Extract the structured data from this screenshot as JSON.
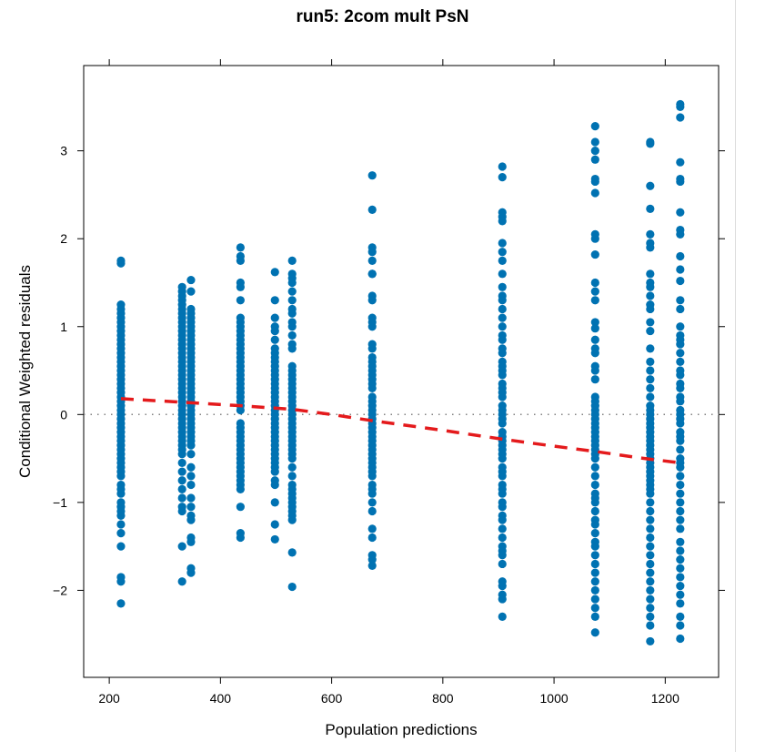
{
  "chart_data": {
    "type": "scatter",
    "title": "run5: 2com mult PsN",
    "xlabel": "Population predictions",
    "ylabel": "Conditional Weighted residuals",
    "xlim": [
      154,
      1296
    ],
    "ylim": [
      -2.99,
      3.97
    ],
    "xticks": [
      200,
      400,
      600,
      800,
      1000,
      1200
    ],
    "yticks": [
      -2,
      -1,
      0,
      1,
      2,
      3
    ],
    "reference_line": {
      "y": 0,
      "style": "dotted",
      "color": "#808080"
    },
    "point_color": "#0072B2",
    "smooth_color": "#E41A1C",
    "columns": [
      {
        "x": 221,
        "y": [
          1.75,
          1.72,
          1.25,
          1.2,
          1.15,
          1.1,
          1.05,
          1.0,
          0.95,
          0.9,
          0.85,
          0.8,
          0.75,
          0.7,
          0.65,
          0.6,
          0.55,
          0.5,
          0.45,
          0.4,
          0.35,
          0.3,
          0.25,
          0.2,
          0.15,
          0.1,
          0.05,
          0.0,
          -0.05,
          -0.1,
          -0.15,
          -0.2,
          -0.25,
          -0.3,
          -0.35,
          -0.4,
          -0.45,
          -0.5,
          -0.55,
          -0.6,
          -0.65,
          -0.7,
          -0.8,
          -0.85,
          -0.9,
          -1.0,
          -1.05,
          -1.1,
          -1.15,
          -1.25,
          -1.35,
          -1.5,
          -1.85,
          -1.9,
          -2.15
        ]
      },
      {
        "x": 331,
        "y": [
          1.45,
          1.4,
          1.35,
          1.3,
          1.25,
          1.2,
          1.15,
          1.1,
          1.05,
          1.0,
          0.95,
          0.9,
          0.85,
          0.8,
          0.75,
          0.7,
          0.65,
          0.6,
          0.55,
          0.5,
          0.45,
          0.4,
          0.35,
          0.3,
          0.25,
          0.2,
          0.15,
          0.1,
          0.05,
          0.0,
          -0.05,
          -0.1,
          -0.15,
          -0.2,
          -0.25,
          -0.3,
          -0.35,
          -0.4,
          -0.45,
          -0.55,
          -0.65,
          -0.75,
          -0.85,
          -0.95,
          -1.05,
          -1.1,
          -1.5,
          -1.9
        ]
      },
      {
        "x": 347,
        "y": [
          1.53,
          1.4,
          1.2,
          1.15,
          1.1,
          1.05,
          1.0,
          0.95,
          0.9,
          0.85,
          0.8,
          0.75,
          0.7,
          0.65,
          0.6,
          0.55,
          0.5,
          0.45,
          0.4,
          0.35,
          0.3,
          0.25,
          0.2,
          0.15,
          0.1,
          0.05,
          0.0,
          -0.05,
          -0.1,
          -0.15,
          -0.2,
          -0.25,
          -0.3,
          -0.35,
          -0.45,
          -0.6,
          -0.7,
          -0.8,
          -0.95,
          -1.05,
          -1.15,
          -1.2,
          -1.4,
          -1.45,
          -1.8,
          -1.75
        ]
      },
      {
        "x": 436,
        "y": [
          1.9,
          1.8,
          1.75,
          1.5,
          1.45,
          1.3,
          1.1,
          1.05,
          1.0,
          0.95,
          0.9,
          0.85,
          0.8,
          0.75,
          0.7,
          0.65,
          0.6,
          0.55,
          0.5,
          0.45,
          0.4,
          0.35,
          0.3,
          0.25,
          0.2,
          0.15,
          0.1,
          0.05,
          -0.1,
          -0.15,
          -0.2,
          -0.25,
          -0.3,
          -0.35,
          -0.4,
          -0.45,
          -0.5,
          -0.55,
          -0.6,
          -0.65,
          -0.7,
          -0.75,
          -0.8,
          -0.85,
          -1.05,
          -1.35,
          -1.4
        ]
      },
      {
        "x": 498,
        "y": [
          1.62,
          1.3,
          1.1,
          1.0,
          0.95,
          0.85,
          0.75,
          0.7,
          0.65,
          0.6,
          0.55,
          0.5,
          0.45,
          0.4,
          0.35,
          0.3,
          0.25,
          0.2,
          0.15,
          0.1,
          0.05,
          0.0,
          -0.05,
          -0.1,
          -0.15,
          -0.2,
          -0.25,
          -0.3,
          -0.35,
          -0.4,
          -0.45,
          -0.5,
          -0.55,
          -0.6,
          -0.65,
          -0.75,
          -0.8,
          -1.0,
          -1.25,
          -1.42
        ]
      },
      {
        "x": 529,
        "y": [
          1.75,
          1.6,
          1.55,
          1.5,
          1.4,
          1.3,
          1.2,
          1.15,
          1.05,
          1.0,
          0.9,
          0.8,
          0.75,
          0.55,
          0.5,
          0.45,
          0.4,
          0.35,
          0.3,
          0.25,
          0.2,
          0.15,
          0.1,
          0.05,
          0.0,
          -0.05,
          -0.1,
          -0.15,
          -0.2,
          -0.25,
          -0.3,
          -0.35,
          -0.4,
          -0.45,
          -0.5,
          -0.6,
          -0.7,
          -0.8,
          -0.85,
          -0.9,
          -0.95,
          -1.0,
          -1.05,
          -1.1,
          -1.15,
          -1.2,
          -1.57,
          -1.96
        ]
      },
      {
        "x": 673,
        "y": [
          2.72,
          2.33,
          1.9,
          1.85,
          1.75,
          1.6,
          1.6,
          1.35,
          1.3,
          1.1,
          1.05,
          1.0,
          0.8,
          0.75,
          0.65,
          0.6,
          0.55,
          0.5,
          0.45,
          0.4,
          0.35,
          0.3,
          0.2,
          0.15,
          0.1,
          0.05,
          0.0,
          -0.05,
          -0.1,
          -0.15,
          -0.2,
          -0.25,
          -0.3,
          -0.35,
          -0.4,
          -0.45,
          -0.5,
          -0.55,
          -0.6,
          -0.65,
          -0.7,
          -0.8,
          -0.85,
          -0.9,
          -1.0,
          -1.1,
          -1.3,
          -1.4,
          -1.6,
          -1.65,
          -1.72
        ]
      },
      {
        "x": 907,
        "y": [
          2.82,
          2.7,
          2.3,
          2.25,
          2.2,
          1.95,
          1.85,
          1.75,
          1.6,
          1.45,
          1.35,
          1.3,
          1.2,
          1.1,
          1.0,
          0.9,
          0.85,
          0.75,
          0.7,
          0.6,
          0.55,
          0.5,
          0.45,
          0.35,
          0.3,
          0.25,
          0.2,
          0.1,
          0.05,
          0.0,
          -0.05,
          -0.1,
          -0.2,
          -0.25,
          -0.3,
          -0.35,
          -0.4,
          -0.45,
          -0.5,
          -0.6,
          -0.65,
          -0.7,
          -0.8,
          -0.85,
          -0.9,
          -1.0,
          -1.05,
          -1.15,
          -1.2,
          -1.3,
          -1.4,
          -1.5,
          -1.55,
          -1.6,
          -1.7,
          -1.9,
          -1.95,
          -2.05,
          -2.1,
          -2.3
        ]
      },
      {
        "x": 1074,
        "y": [
          3.28,
          3.1,
          3.0,
          2.9,
          2.68,
          2.65,
          2.52,
          2.05,
          2.0,
          1.82,
          1.5,
          1.4,
          1.3,
          1.05,
          0.98,
          0.85,
          0.75,
          0.7,
          0.55,
          0.5,
          0.4,
          0.2,
          0.15,
          0.1,
          0.05,
          0.0,
          -0.05,
          -0.1,
          -0.15,
          -0.2,
          -0.25,
          -0.3,
          -0.35,
          -0.4,
          -0.45,
          -0.5,
          -0.6,
          -0.7,
          -0.8,
          -0.9,
          -0.95,
          -1.0,
          -1.1,
          -1.2,
          -1.25,
          -1.35,
          -1.45,
          -1.5,
          -1.6,
          -1.7,
          -1.8,
          -1.9,
          -2.0,
          -2.1,
          -2.2,
          -2.3,
          -2.48
        ]
      },
      {
        "x": 1173,
        "y": [
          3.1,
          3.08,
          2.6,
          2.34,
          2.05,
          1.95,
          1.9,
          1.6,
          1.5,
          1.45,
          1.35,
          1.25,
          1.2,
          1.05,
          0.95,
          0.75,
          0.6,
          0.5,
          0.4,
          0.3,
          0.2,
          0.1,
          0.05,
          0.0,
          -0.05,
          -0.1,
          -0.15,
          -0.2,
          -0.25,
          -0.3,
          -0.35,
          -0.4,
          -0.45,
          -0.5,
          -0.55,
          -0.6,
          -0.65,
          -0.7,
          -0.75,
          -0.8,
          -0.85,
          -0.9,
          -1.0,
          -1.1,
          -1.2,
          -1.3,
          -1.4,
          -1.5,
          -1.6,
          -1.7,
          -1.8,
          -1.9,
          -2.0,
          -2.1,
          -2.2,
          -2.3,
          -2.4,
          -2.58
        ]
      },
      {
        "x": 1227,
        "y": [
          3.53,
          3.5,
          3.38,
          2.87,
          2.68,
          2.65,
          2.3,
          2.1,
          2.05,
          1.8,
          1.65,
          1.52,
          1.3,
          1.2,
          1.0,
          0.9,
          0.85,
          0.8,
          0.7,
          0.6,
          0.5,
          0.45,
          0.35,
          0.3,
          0.2,
          0.15,
          0.05,
          0.0,
          -0.05,
          -0.1,
          -0.2,
          -0.25,
          -0.3,
          -0.4,
          -0.5,
          -0.55,
          -0.6,
          -0.7,
          -0.8,
          -0.9,
          -1.0,
          -1.1,
          -1.2,
          -1.3,
          -1.45,
          -1.55,
          -1.65,
          -1.75,
          -1.85,
          -1.95,
          -2.05,
          -2.15,
          -2.3,
          -2.4,
          -2.55
        ]
      }
    ],
    "smooth": {
      "x": [
        221,
        331,
        436,
        529,
        600,
        673,
        800,
        907,
        1000,
        1074,
        1150,
        1227
      ],
      "y": [
        0.18,
        0.14,
        0.1,
        0.06,
        0.0,
        -0.07,
        -0.18,
        -0.28,
        -0.36,
        -0.42,
        -0.49,
        -0.55
      ]
    }
  }
}
